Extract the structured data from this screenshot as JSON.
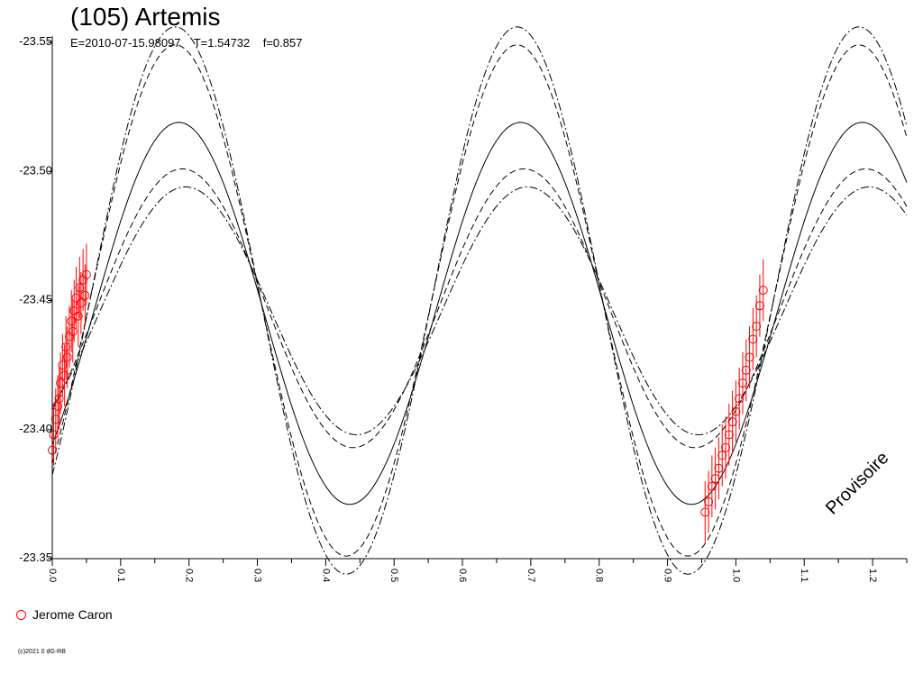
{
  "header": {
    "title": "(105) Artemis",
    "subtitle": "E=2010-07-15.98097    T=1.54732    f=0.857"
  },
  "legend": {
    "label": "Jerome Caron",
    "marker_color": "#ff0000"
  },
  "copyright": "(c)2021 0 dG-RB",
  "watermark": "Provisoire",
  "chart_data": {
    "type": "scatter",
    "title": "(105) Artemis",
    "xlim": [
      0,
      1.25
    ],
    "ylim": [
      -23.35,
      -23.55
    ],
    "y_axis_inverted": true,
    "x_ticks": [
      "0.0",
      "0.1",
      "0.2",
      "0.3",
      "0.4",
      "0.5",
      "0.6",
      "0.7",
      "0.8",
      "0.9",
      "1.0",
      "1.1",
      "1.2"
    ],
    "y_ticks": [
      "-23.55",
      "-23.50",
      "-23.45",
      "-23.40",
      "-23.35"
    ],
    "grid": false,
    "legend_position": "bottom-left",
    "model_curves": [
      {
        "style": "solid",
        "mean": -23.445,
        "amplitude": 0.074,
        "peak_phase": 0.185
      },
      {
        "style": "dashed",
        "mean": -23.45,
        "amplitude": 0.099,
        "peak_phase": 0.18
      },
      {
        "style": "dashed",
        "mean": -23.447,
        "amplitude": 0.054,
        "peak_phase": 0.19
      },
      {
        "style": "dash-dot",
        "mean": -23.45,
        "amplitude": 0.106,
        "peak_phase": 0.18
      },
      {
        "style": "dash-dot",
        "mean": -23.446,
        "amplitude": 0.048,
        "peak_phase": 0.195
      }
    ],
    "series": [
      {
        "name": "Jerome Caron",
        "color": "#ff0000",
        "x": [
          0.0,
          0.002,
          0.005,
          0.008,
          0.01,
          0.012,
          0.015,
          0.018,
          0.02,
          0.022,
          0.025,
          0.028,
          0.03,
          0.032,
          0.035,
          0.038,
          0.04,
          0.042,
          0.045,
          0.048,
          0.05,
          0.955,
          0.96,
          0.965,
          0.97,
          0.975,
          0.98,
          0.985,
          0.99,
          0.995,
          1.0,
          1.005,
          1.01,
          1.015,
          1.02,
          1.025,
          1.03,
          1.035,
          1.04
        ],
        "y": [
          -23.392,
          -23.398,
          -23.404,
          -23.409,
          -23.412,
          -23.418,
          -23.425,
          -23.421,
          -23.432,
          -23.428,
          -23.436,
          -23.442,
          -23.438,
          -23.446,
          -23.451,
          -23.444,
          -23.455,
          -23.449,
          -23.458,
          -23.452,
          -23.46,
          -23.368,
          -23.372,
          -23.378,
          -23.381,
          -23.385,
          -23.39,
          -23.393,
          -23.398,
          -23.403,
          -23.407,
          -23.412,
          -23.418,
          -23.423,
          -23.428,
          -23.435,
          -23.44,
          -23.448,
          -23.454
        ],
        "y_error": 0.012
      }
    ]
  }
}
